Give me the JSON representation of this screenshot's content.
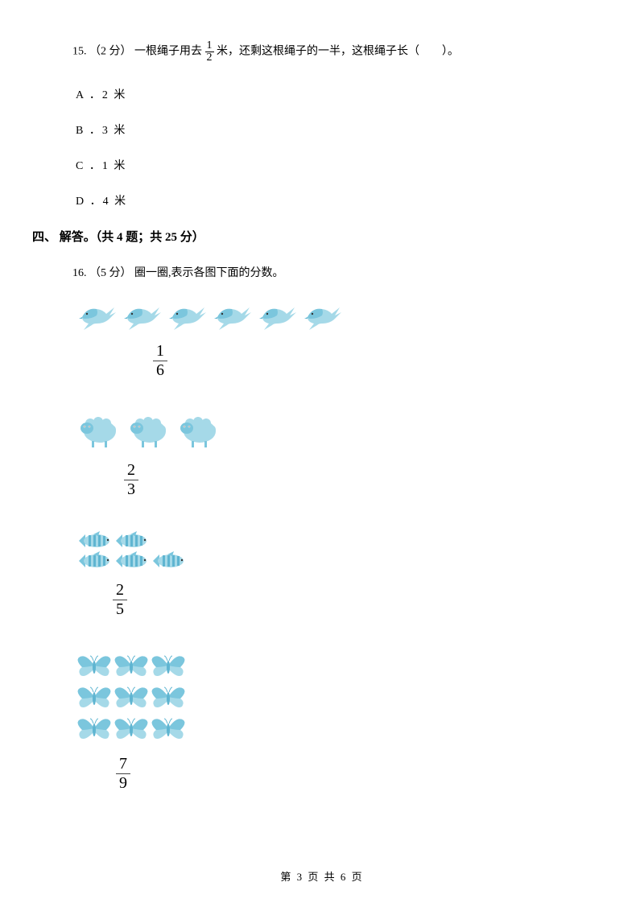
{
  "colors": {
    "icon_light": "#a5d9e8",
    "icon_mid": "#7bc6dd",
    "icon_dark": "#5fb5d1",
    "text": "#000000",
    "bg": "#ffffff"
  },
  "q15": {
    "number": "15.",
    "points": "（2 分）",
    "text_before_frac": "一根绳子用去",
    "frac_num": "1",
    "frac_den": "2",
    "text_after_frac": " 米，还剩这根绳子的一半，这根绳子长（　　）。",
    "options": [
      {
        "label": "A ．2 米"
      },
      {
        "label": "B ．3 米"
      },
      {
        "label": "C ．1 米"
      },
      {
        "label": "D ．4 米"
      }
    ]
  },
  "section4": {
    "title": "四、 解答。（共 4 题；共 25 分）"
  },
  "q16": {
    "number": "16.",
    "points": "（5 分）",
    "text": "圈一圈,表示各图下面的分数。",
    "items": [
      {
        "icon": "bird",
        "layout": "row",
        "count": 6,
        "frac_num": "1",
        "frac_den": "6",
        "frac_margin_left": 100
      },
      {
        "icon": "sheep",
        "layout": "row",
        "count": 3,
        "frac_num": "2",
        "frac_den": "3",
        "frac_margin_left": 64
      },
      {
        "icon": "fish",
        "layout": "rows",
        "rows": [
          2,
          3
        ],
        "frac_num": "2",
        "frac_den": "5",
        "frac_margin_left": 50
      },
      {
        "icon": "butterfly",
        "layout": "rows",
        "rows": [
          3,
          3,
          3
        ],
        "frac_num": "7",
        "frac_den": "9",
        "frac_margin_left": 54
      }
    ]
  },
  "footer": {
    "text_before_cur": "第 ",
    "current": "3",
    "text_mid": " 页 共 ",
    "total": "6",
    "text_after": " 页"
  }
}
